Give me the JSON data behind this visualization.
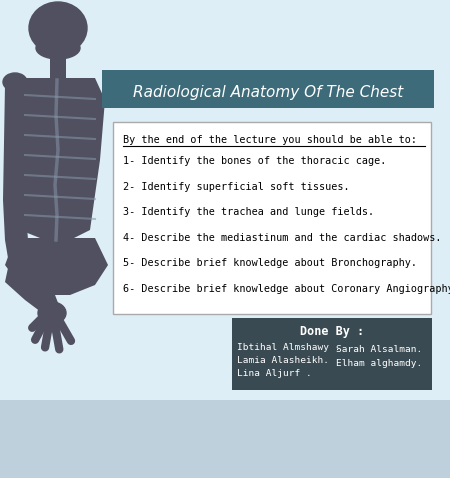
{
  "bg_color": "#ddeef6",
  "bg_bottom_color": "#bdd0dc",
  "title": "Radiological Anatomy Of The Chest",
  "title_bg": "#3d6b7a",
  "title_color": "#ffffff",
  "box_bg": "#ffffff",
  "box_border": "#aaaaaa",
  "header_text": "By the end of the lecture you should be able to:",
  "items": [
    "1- Identify the bones of the thoracic cage.",
    "2- Identify superficial soft tissues.",
    "3- Identify the trachea and lunge fields.",
    "4- Describe the mediastinum and the cardiac shadows.",
    "5- Describe brief knowledge about Bronchography.",
    "6- Describe brief knowledge about Coronary Angiography"
  ],
  "done_by_bg": "#3a4a52",
  "done_by_text_color": "#ffffff",
  "done_by_header": "Done By :",
  "done_by_left": [
    "Ibtihal Almshawy .",
    "Lamia Alasheikh.",
    "Lina Aljurf ."
  ],
  "done_by_right": [
    "Sarah Alsalman.",
    "Elham alghamdy."
  ],
  "skeleton_color": "#505060"
}
